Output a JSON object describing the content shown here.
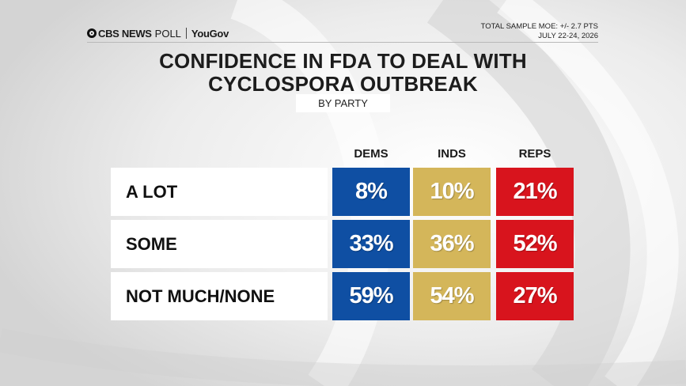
{
  "brand": {
    "network": "CBS NEWS",
    "poll": "POLL",
    "partner": "YouGov"
  },
  "moe": {
    "line1": "TOTAL SAMPLE MOE: +/- 2.7 PTS",
    "line2": "JULY 22-24, 2026"
  },
  "chart_data": {
    "type": "table",
    "title_line1": "CONFIDENCE IN FDA TO DEAL WITH",
    "title_line2": "CYCLOSPORA OUTBREAK",
    "subtitle": "BY PARTY",
    "columns": [
      "DEMS",
      "INDS",
      "REPS"
    ],
    "column_colors": [
      "#0f4fa3",
      "#d4b65a",
      "#d8141d"
    ],
    "rows": [
      {
        "label": "A LOT",
        "values": [
          8,
          10,
          21
        ],
        "display": [
          "8%",
          "10%",
          "21%"
        ]
      },
      {
        "label": "SOME",
        "values": [
          33,
          36,
          52
        ],
        "display": [
          "33%",
          "36%",
          "52%"
        ]
      },
      {
        "label": "NOT MUCH/NONE",
        "values": [
          59,
          54,
          27
        ],
        "display": [
          "59%",
          "54%",
          "27%"
        ]
      }
    ],
    "unit": "%"
  }
}
